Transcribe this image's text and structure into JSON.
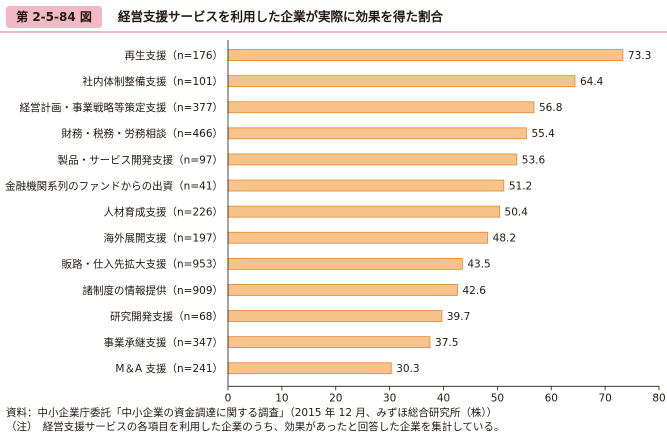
{
  "figure": {
    "number": "第 2-5-84 図",
    "title": "経営支援サービスを利用した企業が実際に効果を得た割合"
  },
  "notes": {
    "source": "資料：中小企業庁委託「中小企業の資金調達に関する調査」（2015 年 12 月、みずほ総合研究所（株））",
    "note": "（注）　経営支援サービスの各項目を利用した企業のうち、効果があったと回答した企業を集計している。"
  },
  "colors": {
    "bar_fill": "#f8c28b",
    "bar_stroke": "#e08a2e",
    "accent": "#f2b8c6"
  },
  "chart_data": {
    "type": "bar",
    "orientation": "horizontal",
    "categories": [
      "再生支援（n=176）",
      "社内体制整備支援（n=101）",
      "経営計画・事業戦略等策定支援（n=377）",
      "財務・税務・労務相談（n=466）",
      "製品・サービス開発支援（n=97）",
      "金融機関系列のファンドからの出資（n=41）",
      "人材育成支援（n=226）",
      "海外展開支援（n=197）",
      "販路・仕入先拡大支援（n=953）",
      "諸制度の情報提供（n=909）",
      "研究開発支援（n=68）",
      "事業承継支援（n=347）",
      "M＆A 支援（n=241）"
    ],
    "values": [
      73.3,
      64.4,
      56.8,
      55.4,
      53.6,
      51.2,
      50.4,
      48.2,
      43.5,
      42.6,
      39.7,
      37.5,
      30.3
    ],
    "value_labels": [
      "73.3",
      "64.4",
      "56.8",
      "55.4",
      "53.6",
      "51.2",
      "50.4",
      "48.2",
      "43.5",
      "42.6",
      "39.7",
      "37.5",
      "30.3"
    ],
    "xlim": [
      0,
      80
    ],
    "xticks": [
      "0",
      "10",
      "20",
      "30",
      "40",
      "50",
      "60",
      "70",
      "80"
    ],
    "unit": "(%)",
    "grid": false,
    "legend": "none"
  }
}
